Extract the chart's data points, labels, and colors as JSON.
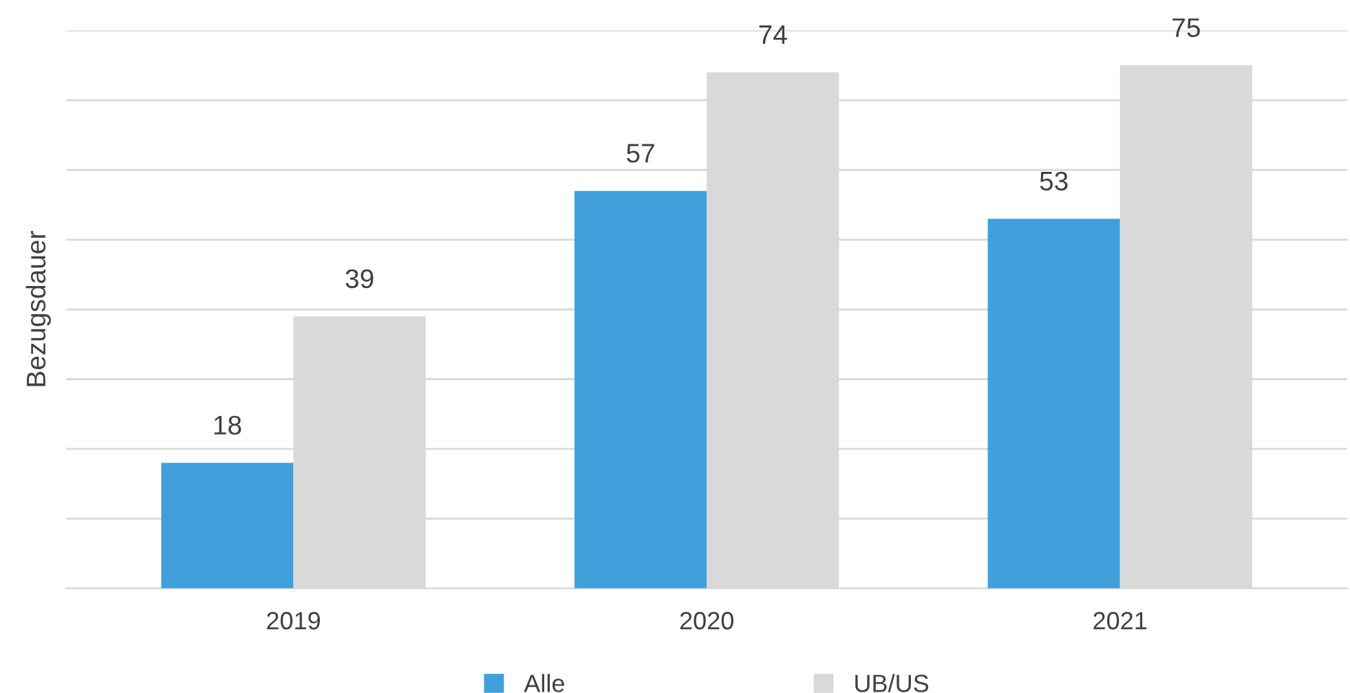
{
  "chart_data": {
    "type": "bar",
    "ylabel": "Bezugsdauer",
    "categories": [
      "2019",
      "2020",
      "2021"
    ],
    "series": [
      {
        "name": "Alle",
        "color": "#41a0dc",
        "values": [
          18,
          57,
          53
        ]
      },
      {
        "name": "UB/US",
        "color": "#d9d9d9",
        "values": [
          39,
          74,
          75
        ]
      }
    ],
    "ylim": [
      0,
      80
    ],
    "yticks": [
      {
        "value": 0,
        "label": null
      },
      {
        "value": 10,
        "label": null
      },
      {
        "value": 20,
        "label": null
      },
      {
        "value": 30,
        "label": null
      },
      {
        "value": 40,
        "label": null
      },
      {
        "value": 50,
        "label": null
      },
      {
        "value": 60,
        "label": null
      },
      {
        "value": 70,
        "label": null
      },
      {
        "value": 80,
        "label": null
      }
    ],
    "tick_labels": "x",
    "grid": "y",
    "legend": "bottom",
    "data_labels": true
  }
}
